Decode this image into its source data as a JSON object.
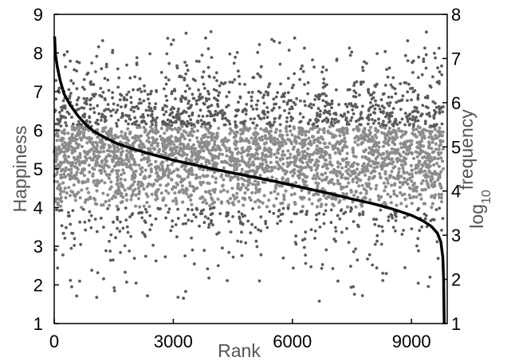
{
  "chart_data": {
    "type": "scatter",
    "title": "",
    "xlabel": "Rank",
    "ylabel_left": "Happiness",
    "ylabel_right": {
      "base": "log",
      "subscript": "10",
      "rest": "frequency"
    },
    "xlim": [
      0,
      9900
    ],
    "ylim_left": [
      1,
      9
    ],
    "ylim_right": [
      1,
      8
    ],
    "x_ticks": [
      0,
      3000,
      6000,
      9000
    ],
    "y_left_ticks": [
      1,
      2,
      3,
      4,
      5,
      6,
      7,
      8,
      9
    ],
    "y_right_ticks": [
      1,
      2,
      3,
      4,
      5,
      6,
      7,
      8
    ],
    "grid": false,
    "legend": "none",
    "series": [
      {
        "kind": "scatter",
        "axis": "left",
        "description_colors": {
          "dense_band": "#8c8c8c",
          "outer": "#5a5a5a"
        },
        "approx_n": 10000,
        "center_happiness": 5.4,
        "band_happiness": [
          4.0,
          6.1
        ]
      },
      {
        "kind": "line",
        "axis": "right",
        "color": "#000000",
        "points": [
          [
            10,
            7.5
          ],
          [
            30,
            7.1
          ],
          [
            80,
            6.8
          ],
          [
            150,
            6.5
          ],
          [
            250,
            6.2
          ],
          [
            400,
            5.95
          ],
          [
            600,
            5.7
          ],
          [
            800,
            5.5
          ],
          [
            1000,
            5.35
          ],
          [
            1300,
            5.2
          ],
          [
            1600,
            5.07
          ],
          [
            2000,
            4.95
          ],
          [
            2500,
            4.82
          ],
          [
            3000,
            4.7
          ],
          [
            3500,
            4.6
          ],
          [
            4000,
            4.5
          ],
          [
            4500,
            4.41
          ],
          [
            5000,
            4.32
          ],
          [
            5500,
            4.23
          ],
          [
            6000,
            4.13
          ],
          [
            6500,
            4.03
          ],
          [
            7000,
            3.93
          ],
          [
            7500,
            3.82
          ],
          [
            8000,
            3.72
          ],
          [
            8500,
            3.6
          ],
          [
            9000,
            3.45
          ],
          [
            9300,
            3.32
          ],
          [
            9500,
            3.2
          ],
          [
            9650,
            3.05
          ],
          [
            9740,
            2.85
          ],
          [
            9790,
            2.5
          ],
          [
            9810,
            2.0
          ],
          [
            9820,
            1.3
          ],
          [
            9825,
            1.0
          ]
        ]
      }
    ]
  }
}
